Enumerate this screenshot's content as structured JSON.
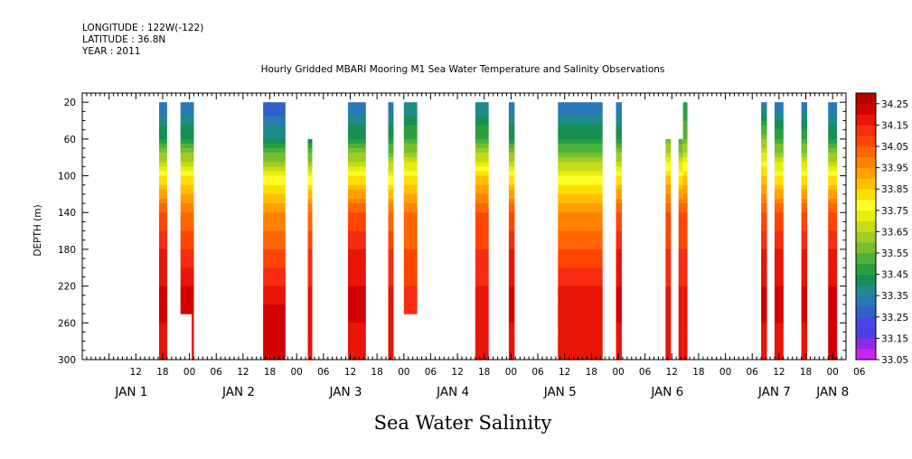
{
  "header": {
    "longitude": "LONGITUDE : 122W(-122)",
    "latitude": "LATITUDE : 36.8N",
    "year": "YEAR : 2011"
  },
  "chart_data": {
    "type": "heatmap",
    "title": "Hourly Gridded MBARI Mooring M1 Sea Water Temperature and Salinity Observations",
    "xlabel": "Sea Water Salinity",
    "ylabel": "DEPTH (m)",
    "ylim": [
      300,
      10
    ],
    "xlim_hours": [
      0,
      171
    ],
    "y_ticks": [
      20,
      60,
      100,
      140,
      180,
      220,
      260,
      300
    ],
    "hour_ticks": [
      {
        "hour": 12,
        "label": "12"
      },
      {
        "hour": 18,
        "label": "18"
      },
      {
        "hour": 24,
        "label": "00"
      },
      {
        "hour": 30,
        "label": "06"
      },
      {
        "hour": 36,
        "label": "12"
      },
      {
        "hour": 42,
        "label": "18"
      },
      {
        "hour": 48,
        "label": "00"
      },
      {
        "hour": 54,
        "label": "06"
      },
      {
        "hour": 60,
        "label": "12"
      },
      {
        "hour": 66,
        "label": "18"
      },
      {
        "hour": 72,
        "label": "00"
      },
      {
        "hour": 78,
        "label": "06"
      },
      {
        "hour": 84,
        "label": "12"
      },
      {
        "hour": 90,
        "label": "18"
      },
      {
        "hour": 96,
        "label": "00"
      },
      {
        "hour": 102,
        "label": "06"
      },
      {
        "hour": 108,
        "label": "12"
      },
      {
        "hour": 114,
        "label": "18"
      },
      {
        "hour": 120,
        "label": "00"
      },
      {
        "hour": 126,
        "label": "06"
      },
      {
        "hour": 132,
        "label": "12"
      },
      {
        "hour": 138,
        "label": "18"
      },
      {
        "hour": 144,
        "label": "00"
      },
      {
        "hour": 150,
        "label": "06"
      },
      {
        "hour": 156,
        "label": "12"
      },
      {
        "hour": 162,
        "label": "18"
      },
      {
        "hour": 168,
        "label": "00"
      },
      {
        "hour": 174,
        "label": "06"
      }
    ],
    "day_labels": [
      {
        "hour": 11,
        "month": "JAN",
        "day": "1"
      },
      {
        "hour": 35,
        "month": "JAN",
        "day": "2"
      },
      {
        "hour": 59,
        "month": "JAN",
        "day": "3"
      },
      {
        "hour": 83,
        "month": "JAN",
        "day": "4"
      },
      {
        "hour": 107,
        "month": "JAN",
        "day": "5"
      },
      {
        "hour": 131,
        "month": "JAN",
        "day": "6"
      },
      {
        "hour": 155,
        "month": "JAN",
        "day": "7"
      },
      {
        "hour": 168,
        "month": "JAN",
        "day": "8"
      }
    ],
    "colorbar": {
      "levels": [
        33.05,
        33.1,
        33.15,
        33.2,
        33.25,
        33.3,
        33.35,
        33.4,
        33.45,
        33.5,
        33.55,
        33.6,
        33.65,
        33.7,
        33.75,
        33.8,
        33.85,
        33.9,
        33.95,
        34.0,
        34.05,
        34.1,
        34.15,
        34.2,
        34.25,
        34.3
      ],
      "labels": [
        "33.05",
        "33.15",
        "33.25",
        "33.35",
        "33.45",
        "33.55",
        "33.65",
        "33.75",
        "33.85",
        "33.95",
        "34.05",
        "34.15",
        "34.25"
      ],
      "colors": [
        "#cc22ee",
        "#8f2be0",
        "#4b3fe3",
        "#4545e8",
        "#3060c8",
        "#2a78b6",
        "#1e8a8a",
        "#158f52",
        "#28a040",
        "#4cb03a",
        "#76c02e",
        "#a0cc25",
        "#c6dc18",
        "#e6ee10",
        "#fffd2a",
        "#ffdf00",
        "#ffbf00",
        "#ffa000",
        "#ff8200",
        "#ff6500",
        "#ff4600",
        "#f82c10",
        "#e81508",
        "#d40000",
        "#b30000"
      ]
    },
    "columns": [
      {
        "start": 17.2,
        "end": 19.0,
        "top": 20,
        "bottom": 300,
        "profile": [
          [
            20,
            33.3
          ],
          [
            60,
            33.45
          ],
          [
            100,
            33.8
          ],
          [
            140,
            34.05
          ],
          [
            180,
            34.15
          ],
          [
            220,
            34.2
          ],
          [
            260,
            34.2
          ],
          [
            300,
            34.15
          ]
        ]
      },
      {
        "start": 22.0,
        "end": 25.0,
        "top": 20,
        "bottom": 250,
        "profile": [
          [
            20,
            33.3
          ],
          [
            60,
            33.45
          ],
          [
            100,
            33.8
          ],
          [
            140,
            34.0
          ],
          [
            180,
            34.1
          ],
          [
            220,
            34.2
          ],
          [
            250,
            34.2
          ]
        ]
      },
      {
        "start": 24.5,
        "end": 25.0,
        "top": 250,
        "bottom": 300,
        "profile": [
          [
            250,
            34.2
          ],
          [
            300,
            34.15
          ]
        ]
      },
      {
        "start": 40.5,
        "end": 45.5,
        "top": 20,
        "bottom": 300,
        "profile": [
          [
            20,
            33.25
          ],
          [
            60,
            33.4
          ],
          [
            100,
            33.75
          ],
          [
            140,
            33.95
          ],
          [
            180,
            34.05
          ],
          [
            220,
            34.15
          ],
          [
            260,
            34.25
          ],
          [
            300,
            34.2
          ]
        ]
      },
      {
        "start": 50.5,
        "end": 51.5,
        "top": 60,
        "bottom": 300,
        "profile": [
          [
            60,
            33.4
          ],
          [
            100,
            33.75
          ],
          [
            140,
            34.0
          ],
          [
            180,
            34.1
          ],
          [
            220,
            34.15
          ],
          [
            260,
            34.2
          ],
          [
            300,
            34.15
          ]
        ]
      },
      {
        "start": 59.5,
        "end": 63.5,
        "top": 20,
        "bottom": 300,
        "profile": [
          [
            20,
            33.3
          ],
          [
            60,
            33.45
          ],
          [
            100,
            33.8
          ],
          [
            140,
            34.05
          ],
          [
            180,
            34.15
          ],
          [
            220,
            34.2
          ],
          [
            260,
            34.2
          ],
          [
            300,
            34.15
          ]
        ]
      },
      {
        "start": 68.5,
        "end": 69.7,
        "top": 20,
        "bottom": 300,
        "profile": [
          [
            20,
            33.3
          ],
          [
            60,
            33.45
          ],
          [
            100,
            33.75
          ],
          [
            140,
            34.0
          ],
          [
            180,
            34.1
          ],
          [
            220,
            34.15
          ],
          [
            260,
            34.2
          ],
          [
            300,
            34.15
          ]
        ]
      },
      {
        "start": 72.0,
        "end": 75.0,
        "top": 20,
        "bottom": 250,
        "profile": [
          [
            20,
            33.35
          ],
          [
            60,
            33.5
          ],
          [
            100,
            33.8
          ],
          [
            140,
            34.0
          ],
          [
            180,
            34.05
          ],
          [
            220,
            34.1
          ],
          [
            250,
            34.15
          ]
        ]
      },
      {
        "start": 88.0,
        "end": 91.0,
        "top": 20,
        "bottom": 300,
        "profile": [
          [
            20,
            33.35
          ],
          [
            60,
            33.5
          ],
          [
            100,
            33.85
          ],
          [
            140,
            34.05
          ],
          [
            180,
            34.1
          ],
          [
            220,
            34.15
          ],
          [
            260,
            34.2
          ],
          [
            300,
            34.15
          ]
        ]
      },
      {
        "start": 95.5,
        "end": 96.8,
        "top": 20,
        "bottom": 300,
        "profile": [
          [
            20,
            33.3
          ],
          [
            60,
            33.45
          ],
          [
            100,
            33.8
          ],
          [
            140,
            34.05
          ],
          [
            180,
            34.15
          ],
          [
            220,
            34.2
          ],
          [
            260,
            34.2
          ],
          [
            300,
            34.15
          ]
        ]
      },
      {
        "start": 106.5,
        "end": 116.5,
        "top": 20,
        "bottom": 300,
        "profile": [
          [
            20,
            33.3
          ],
          [
            60,
            33.45
          ],
          [
            100,
            33.75
          ],
          [
            140,
            33.95
          ],
          [
            180,
            34.05
          ],
          [
            220,
            34.15
          ],
          [
            260,
            34.2
          ],
          [
            300,
            34.15
          ]
        ]
      },
      {
        "start": 119.5,
        "end": 120.8,
        "top": 20,
        "bottom": 300,
        "profile": [
          [
            20,
            33.3
          ],
          [
            60,
            33.45
          ],
          [
            100,
            33.8
          ],
          [
            140,
            34.05
          ],
          [
            180,
            34.15
          ],
          [
            220,
            34.2
          ],
          [
            260,
            34.2
          ],
          [
            300,
            34.15
          ]
        ]
      },
      {
        "start": 130.6,
        "end": 131.8,
        "top": 60,
        "bottom": 300,
        "profile": [
          [
            60,
            33.55
          ],
          [
            100,
            33.85
          ],
          [
            140,
            34.05
          ],
          [
            180,
            34.1
          ],
          [
            220,
            34.15
          ],
          [
            260,
            34.2
          ],
          [
            300,
            34.15
          ]
        ]
      },
      {
        "start": 133.5,
        "end": 134.5,
        "top": 60,
        "bottom": 300,
        "profile": [
          [
            60,
            33.5
          ],
          [
            100,
            33.8
          ],
          [
            140,
            34.05
          ],
          [
            180,
            34.1
          ],
          [
            220,
            34.15
          ],
          [
            260,
            34.2
          ],
          [
            300,
            34.15
          ]
        ]
      },
      {
        "start": 134.5,
        "end": 135.5,
        "top": 20,
        "bottom": 300,
        "profile": [
          [
            20,
            33.45
          ],
          [
            60,
            33.55
          ],
          [
            100,
            33.85
          ],
          [
            140,
            34.05
          ],
          [
            180,
            34.1
          ],
          [
            220,
            34.15
          ],
          [
            260,
            34.2
          ],
          [
            300,
            34.15
          ]
        ]
      },
      {
        "start": 152.0,
        "end": 153.3,
        "top": 20,
        "bottom": 300,
        "profile": [
          [
            20,
            33.3
          ],
          [
            60,
            33.6
          ],
          [
            100,
            33.85
          ],
          [
            140,
            34.05
          ],
          [
            180,
            34.15
          ],
          [
            220,
            34.2
          ],
          [
            260,
            34.2
          ],
          [
            300,
            34.15
          ]
        ]
      },
      {
        "start": 155.0,
        "end": 157.0,
        "top": 20,
        "bottom": 300,
        "profile": [
          [
            20,
            33.3
          ],
          [
            60,
            33.5
          ],
          [
            100,
            33.8
          ],
          [
            140,
            34.05
          ],
          [
            180,
            34.15
          ],
          [
            220,
            34.2
          ],
          [
            260,
            34.2
          ],
          [
            300,
            34.15
          ]
        ]
      },
      {
        "start": 161.0,
        "end": 162.3,
        "top": 20,
        "bottom": 300,
        "profile": [
          [
            20,
            33.3
          ],
          [
            60,
            33.5
          ],
          [
            100,
            33.8
          ],
          [
            140,
            34.05
          ],
          [
            180,
            34.15
          ],
          [
            220,
            34.2
          ],
          [
            260,
            34.2
          ],
          [
            300,
            34.15
          ]
        ]
      },
      {
        "start": 167.0,
        "end": 169.0,
        "top": 20,
        "bottom": 300,
        "profile": [
          [
            20,
            33.3
          ],
          [
            60,
            33.45
          ],
          [
            100,
            33.8
          ],
          [
            140,
            34.05
          ],
          [
            180,
            34.15
          ],
          [
            220,
            34.2
          ],
          [
            260,
            34.25
          ],
          [
            300,
            34.2
          ]
        ]
      }
    ]
  }
}
